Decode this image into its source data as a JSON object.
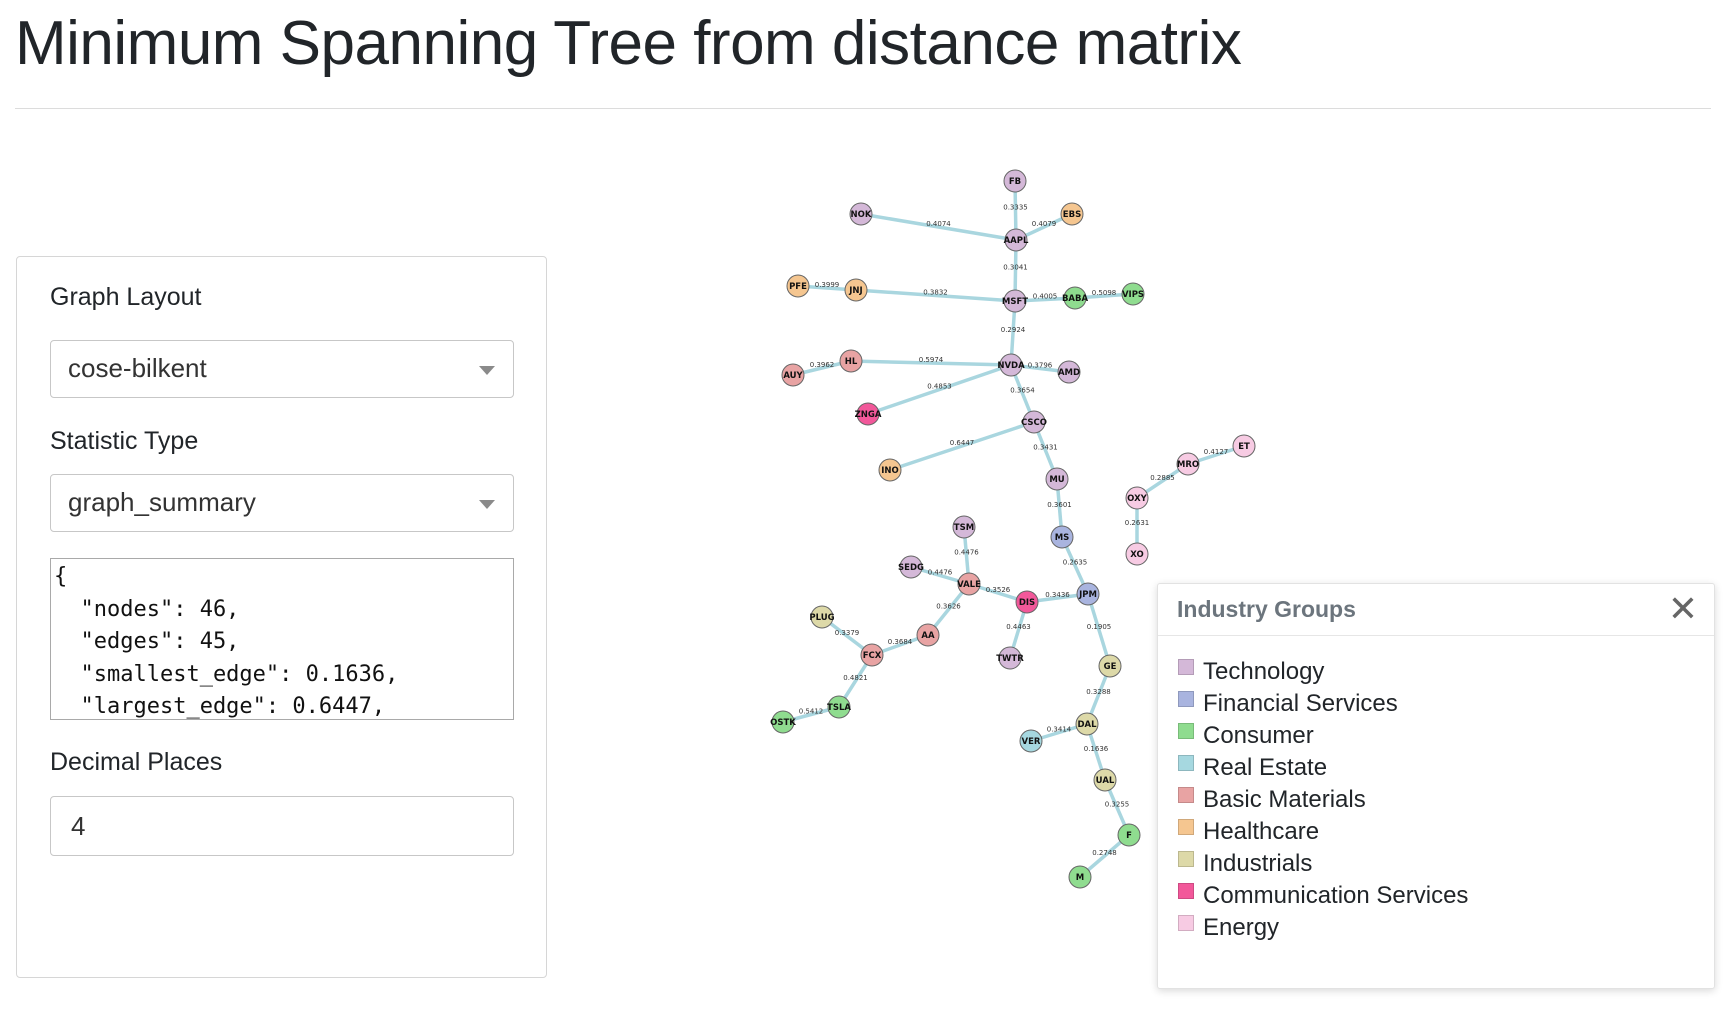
{
  "page": {
    "title": "Minimum Spanning Tree from distance matrix"
  },
  "controls": {
    "layout_label": "Graph Layout",
    "layout_value": "cose-bilkent",
    "stat_label": "Statistic Type",
    "stat_value": "graph_summary",
    "stat_output": "{\n  \"nodes\": 46,\n  \"edges\": 45,\n  \"smallest_edge\": 0.1636,\n  \"largest_edge\": 0.6447,",
    "decimals_label": "Decimal Places",
    "decimals_value": "4"
  },
  "legend": {
    "title": "Industry Groups",
    "close_symbol": "✕",
    "groups": [
      {
        "name": "Technology",
        "color": "#d4b8d8"
      },
      {
        "name": "Financial Services",
        "color": "#a9b4df"
      },
      {
        "name": "Consumer",
        "color": "#8fdc8f"
      },
      {
        "name": "Real Estate",
        "color": "#a6d8e0"
      },
      {
        "name": "Basic Materials",
        "color": "#e8a3a3"
      },
      {
        "name": "Healthcare",
        "color": "#f5c690"
      },
      {
        "name": "Industrials",
        "color": "#ddd9a8"
      },
      {
        "name": "Communication Services",
        "color": "#f2589a"
      },
      {
        "name": "Energy",
        "color": "#f7cbe3"
      }
    ]
  },
  "graph": {
    "edge_color": "#a9d6df",
    "nodes": [
      {
        "id": "FB",
        "group": "Technology"
      },
      {
        "id": "NOK",
        "group": "Technology"
      },
      {
        "id": "EBS",
        "group": "Healthcare"
      },
      {
        "id": "AAPL",
        "group": "Technology"
      },
      {
        "id": "PFE",
        "group": "Healthcare"
      },
      {
        "id": "JNJ",
        "group": "Healthcare"
      },
      {
        "id": "MSFT",
        "group": "Technology"
      },
      {
        "id": "BABA",
        "group": "Consumer"
      },
      {
        "id": "VIPS",
        "group": "Consumer"
      },
      {
        "id": "AUY",
        "group": "Basic Materials"
      },
      {
        "id": "HL",
        "group": "Basic Materials"
      },
      {
        "id": "NVDA",
        "group": "Technology"
      },
      {
        "id": "AMD",
        "group": "Technology"
      },
      {
        "id": "ZNGA",
        "group": "Communication Services"
      },
      {
        "id": "CSCO",
        "group": "Technology"
      },
      {
        "id": "INO",
        "group": "Healthcare"
      },
      {
        "id": "MU",
        "group": "Technology"
      },
      {
        "id": "MS",
        "group": "Financial Services"
      },
      {
        "id": "JPM",
        "group": "Financial Services"
      },
      {
        "id": "ET",
        "group": "Energy"
      },
      {
        "id": "MRO",
        "group": "Energy"
      },
      {
        "id": "OXY",
        "group": "Energy"
      },
      {
        "id": "XO",
        "group": "Energy"
      },
      {
        "id": "TSM",
        "group": "Technology"
      },
      {
        "id": "SEDG",
        "group": "Technology"
      },
      {
        "id": "VALE",
        "group": "Basic Materials"
      },
      {
        "id": "DIS",
        "group": "Communication Services"
      },
      {
        "id": "PLUG",
        "group": "Industrials"
      },
      {
        "id": "AA",
        "group": "Basic Materials"
      },
      {
        "id": "FCX",
        "group": "Basic Materials"
      },
      {
        "id": "TWTR",
        "group": "Technology"
      },
      {
        "id": "GE",
        "group": "Industrials"
      },
      {
        "id": "TSLA",
        "group": "Consumer"
      },
      {
        "id": "OSTK",
        "group": "Consumer"
      },
      {
        "id": "VER",
        "group": "Real Estate"
      },
      {
        "id": "DAL",
        "group": "Industrials"
      },
      {
        "id": "UAL",
        "group": "Industrials"
      },
      {
        "id": "F",
        "group": "Consumer"
      },
      {
        "id": "M",
        "group": "Consumer"
      }
    ],
    "edges": [
      {
        "source": "FB",
        "target": "AAPL",
        "weight": "0.3335"
      },
      {
        "source": "NOK",
        "target": "AAPL",
        "weight": "0.4074"
      },
      {
        "source": "EBS",
        "target": "AAPL",
        "weight": "0.4079"
      },
      {
        "source": "AAPL",
        "target": "MSFT",
        "weight": "0.3041"
      },
      {
        "source": "PFE",
        "target": "JNJ",
        "weight": "0.3999"
      },
      {
        "source": "JNJ",
        "target": "MSFT",
        "weight": "0.3832"
      },
      {
        "source": "MSFT",
        "target": "BABA",
        "weight": "0.4005"
      },
      {
        "source": "BABA",
        "target": "VIPS",
        "weight": "0.5098"
      },
      {
        "source": "MSFT",
        "target": "NVDA",
        "weight": "0.2924"
      },
      {
        "source": "AUY",
        "target": "HL",
        "weight": "0.3962"
      },
      {
        "source": "HL",
        "target": "NVDA",
        "weight": "0.5974"
      },
      {
        "source": "NVDA",
        "target": "AMD",
        "weight": "0.3796"
      },
      {
        "source": "NVDA",
        "target": "ZNGA",
        "weight": "0.4853"
      },
      {
        "source": "NVDA",
        "target": "CSCO",
        "weight": "0.3654"
      },
      {
        "source": "CSCO",
        "target": "INO",
        "weight": "0.6447"
      },
      {
        "source": "CSCO",
        "target": "MU",
        "weight": "0.3431"
      },
      {
        "source": "MU",
        "target": "MS",
        "weight": "0.3601"
      },
      {
        "source": "MS",
        "target": "JPM",
        "weight": "0.2635"
      },
      {
        "source": "ET",
        "target": "MRO",
        "weight": "0.4127"
      },
      {
        "source": "MRO",
        "target": "OXY",
        "weight": "0.2885"
      },
      {
        "source": "OXY",
        "target": "XO",
        "weight": "0.2631"
      },
      {
        "source": "TSM",
        "target": "VALE",
        "weight": "0.4476"
      },
      {
        "source": "SEDG",
        "target": "VALE",
        "weight": "0.4476"
      },
      {
        "source": "VALE",
        "target": "DIS",
        "weight": "0.3526"
      },
      {
        "source": "DIS",
        "target": "JPM",
        "weight": "0.3436"
      },
      {
        "source": "VALE",
        "target": "AA",
        "weight": "0.3626"
      },
      {
        "source": "DIS",
        "target": "TWTR",
        "weight": "0.4463"
      },
      {
        "source": "PLUG",
        "target": "FCX",
        "weight": "0.3379"
      },
      {
        "source": "AA",
        "target": "FCX",
        "weight": "0.3684"
      },
      {
        "source": "FCX",
        "target": "TSLA",
        "weight": "0.4821"
      },
      {
        "source": "TSLA",
        "target": "OSTK",
        "weight": "0.5412"
      },
      {
        "source": "JPM",
        "target": "GE",
        "weight": "0.1905"
      },
      {
        "source": "GE",
        "target": "DAL",
        "weight": "0.3288"
      },
      {
        "source": "VER",
        "target": "DAL",
        "weight": "0.3414"
      },
      {
        "source": "DAL",
        "target": "UAL",
        "weight": "0.1636"
      },
      {
        "source": "UAL",
        "target": "F",
        "weight": "0.3255"
      },
      {
        "source": "F",
        "target": "M",
        "weight": "0.2748"
      }
    ]
  }
}
